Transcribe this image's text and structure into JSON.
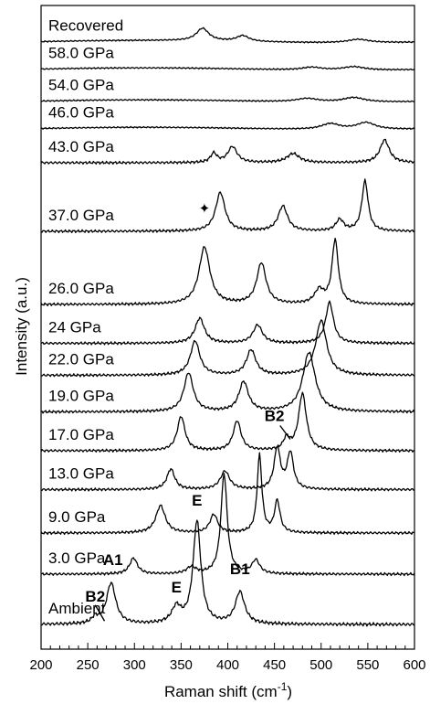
{
  "chart_data": {
    "type": "line",
    "title": "",
    "xlabel": "Raman shift (cm",
    "xlabel_sup": "-1",
    "xlabel_end": ")",
    "ylabel": "Intensity (a.u.)",
    "xlim": [
      200,
      600
    ],
    "xticks": [
      200,
      250,
      300,
      350,
      400,
      450,
      500,
      550,
      600
    ],
    "x_minor_step": 10,
    "stacked": true,
    "series": [
      {
        "label": "Ambient",
        "baseline": 0,
        "noise": 0.05,
        "tilt": 0.0,
        "peaks": [
          [
            258,
            0.25,
            4
          ],
          [
            275,
            1.8,
            6
          ],
          [
            345,
            0.7,
            6
          ],
          [
            367,
            4.5,
            5
          ],
          [
            413,
            1.4,
            6
          ]
        ]
      },
      {
        "label": "3.0 GPa",
        "baseline": 2.2,
        "noise": 0.04,
        "tilt": 0.0,
        "peaks": [
          [
            299,
            0.7,
            5
          ],
          [
            361,
            0.3,
            6
          ],
          [
            396,
            4.4,
            4
          ],
          [
            430,
            0.6,
            5
          ]
        ]
      },
      {
        "label": "9.0 GPa",
        "baseline": 4.0,
        "noise": 0.04,
        "tilt": 0.0,
        "peaks": [
          [
            328,
            1.2,
            6
          ],
          [
            385,
            0.8,
            5
          ],
          [
            434,
            3.4,
            3
          ],
          [
            453,
            1.4,
            3.5
          ]
        ]
      },
      {
        "label": "13.0 GPa",
        "baseline": 5.9,
        "noise": 0.04,
        "tilt": 0.0,
        "peaks": [
          [
            339,
            0.9,
            5
          ],
          [
            397,
            0.8,
            6
          ],
          [
            453,
            1.8,
            4
          ],
          [
            467,
            1.6,
            4
          ]
        ]
      },
      {
        "label": "17.0 GPa",
        "baseline": 7.6,
        "noise": 0.04,
        "tilt": 0.0,
        "peaks": [
          [
            350,
            1.5,
            5
          ],
          [
            410,
            1.3,
            5
          ],
          [
            463,
            0.5,
            4
          ],
          [
            480,
            2.5,
            5
          ]
        ]
      },
      {
        "label": "19.0 GPa",
        "baseline": 9.3,
        "noise": 0.04,
        "tilt": 0.0,
        "peaks": [
          [
            358,
            1.7,
            6
          ],
          [
            417,
            1.3,
            6
          ],
          [
            487,
            2.6,
            8
          ]
        ]
      },
      {
        "label": "22.0 GPa",
        "baseline": 10.9,
        "noise": 0.04,
        "tilt": 0.0,
        "peaks": [
          [
            365,
            1.5,
            6
          ],
          [
            425,
            1.1,
            6
          ],
          [
            500,
            2.4,
            7
          ]
        ]
      },
      {
        "label": "24 GPa",
        "baseline": 12.3,
        "noise": 0.04,
        "tilt": 0.0,
        "peaks": [
          [
            370,
            1.1,
            6
          ],
          [
            432,
            0.8,
            6
          ],
          [
            509,
            1.8,
            5
          ]
        ]
      },
      {
        "label": "26.0 GPa",
        "baseline": 14.0,
        "noise": 0.04,
        "tilt": 0.0,
        "peaks": [
          [
            375,
            2.5,
            7
          ],
          [
            436,
            1.8,
            6
          ],
          [
            498,
            0.6,
            6
          ],
          [
            515,
            2.8,
            4
          ]
        ]
      },
      {
        "label": "37.0 GPa",
        "baseline": 17.2,
        "noise": 0.04,
        "tilt": 0.0,
        "peaks": [
          [
            392,
            1.7,
            6
          ],
          [
            459,
            1.1,
            6
          ],
          [
            520,
            0.5,
            5
          ],
          [
            547,
            2.2,
            4
          ]
        ]
      },
      {
        "label": "43.0 GPa",
        "baseline": 20.2,
        "noise": 0.04,
        "tilt": 0.0,
        "peaks": [
          [
            385,
            0.4,
            4
          ],
          [
            405,
            0.7,
            6
          ],
          [
            470,
            0.4,
            8
          ],
          [
            568,
            1.0,
            6
          ]
        ]
      },
      {
        "label": "46.0 GPa",
        "baseline": 21.7,
        "noise": 0.02,
        "tilt": 0.05,
        "peaks": [
          [
            510,
            0.25,
            12
          ],
          [
            548,
            0.3,
            12
          ]
        ]
      },
      {
        "label": "54.0 GPa",
        "baseline": 22.9,
        "noise": 0.02,
        "tilt": 0.05,
        "peaks": [
          [
            485,
            0.15,
            14
          ],
          [
            535,
            0.2,
            14
          ]
        ]
      },
      {
        "label": "58.0 GPa",
        "baseline": 24.3,
        "noise": 0.02,
        "tilt": 0.05,
        "peaks": [
          [
            490,
            0.12,
            12
          ],
          [
            535,
            0.15,
            14
          ]
        ]
      },
      {
        "label": "Recovered",
        "baseline": 25.5,
        "noise": 0.02,
        "tilt": 0.05,
        "peaks": [
          [
            373,
            0.55,
            8
          ],
          [
            416,
            0.25,
            8
          ],
          [
            540,
            0.15,
            14
          ]
        ]
      }
    ],
    "annotations": [
      {
        "text": "B2",
        "x": 258,
        "y": 1.0
      },
      {
        "text": "A1",
        "x": 277,
        "y": 2.6
      },
      {
        "text": "E",
        "x": 345,
        "y": 1.4
      },
      {
        "text": "E",
        "x": 367,
        "y": 5.2
      },
      {
        "text": "B1",
        "x": 413,
        "y": 2.2
      },
      {
        "text": "B2",
        "x": 450,
        "y": 8.9
      }
    ],
    "star_marker": {
      "text": "✦",
      "x": 375,
      "y": 18.0
    }
  }
}
